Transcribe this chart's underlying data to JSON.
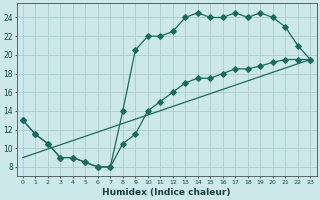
{
  "xlabel": "Humidex (Indice chaleur)",
  "bg_color": "#cce8ea",
  "grid_color": "#aacdd0",
  "line_color": "#1a6b5e",
  "xlim": [
    -0.5,
    23.5
  ],
  "ylim": [
    7.0,
    25.5
  ],
  "xticks": [
    0,
    1,
    2,
    3,
    4,
    5,
    6,
    7,
    8,
    9,
    10,
    11,
    12,
    13,
    14,
    15,
    16,
    17,
    18,
    19,
    20,
    21,
    22,
    23
  ],
  "yticks": [
    8,
    10,
    12,
    14,
    16,
    18,
    20,
    22,
    24
  ],
  "line1_x": [
    0,
    1,
    2,
    3,
    4,
    5,
    6,
    7,
    8,
    9,
    10,
    11,
    12,
    13,
    14,
    15,
    16,
    17,
    18,
    19,
    20,
    21,
    22,
    23
  ],
  "line1_y": [
    13,
    11.5,
    10.5,
    9.0,
    9.0,
    8.5,
    8.0,
    8.0,
    10.5,
    11.5,
    14.0,
    15.0,
    16.0,
    17.0,
    17.5,
    17.5,
    18.0,
    18.5,
    18.5,
    18.8,
    19.2,
    19.5,
    19.5,
    19.5
  ],
  "line2_x": [
    0,
    1,
    2,
    3,
    4,
    5,
    6,
    7,
    8,
    9,
    10,
    11,
    12,
    13,
    14,
    15,
    16,
    17,
    18,
    19,
    20,
    21,
    22,
    23
  ],
  "line2_y": [
    13,
    11.5,
    10.5,
    9.0,
    9.0,
    8.5,
    8.0,
    8.0,
    14.0,
    20.5,
    22.0,
    22.0,
    22.5,
    24.0,
    24.5,
    24.0,
    24.0,
    24.5,
    24.0,
    24.5,
    24.0,
    23.0,
    21.0,
    19.5
  ],
  "line3_x": [
    0,
    23
  ],
  "line3_y": [
    9.0,
    19.5
  ]
}
